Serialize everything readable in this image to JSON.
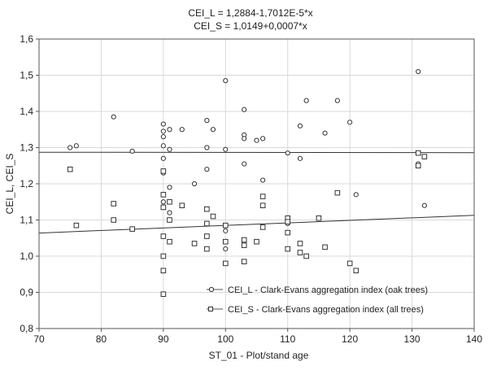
{
  "chart_data": {
    "type": "scatter",
    "title_lines": [
      "CEI_L = 1,2884-1,7012E-5*x",
      "CEI_S = 1,0149+0,0007*x"
    ],
    "xlabel": "ST_01 - Plot/stand age",
    "ylabel": "CEI_L, CEI_S",
    "xlim": [
      70,
      140
    ],
    "ylim": [
      0.8,
      1.6
    ],
    "x_ticks": [
      70,
      80,
      90,
      100,
      110,
      120,
      130,
      140
    ],
    "x_tick_labels": [
      "70",
      "80",
      "90",
      "100",
      "110",
      "120",
      "130",
      "140"
    ],
    "y_ticks": [
      0.8,
      0.9,
      1.0,
      1.1,
      1.2,
      1.3,
      1.4,
      1.5,
      1.6
    ],
    "y_tick_labels": [
      "0,8",
      "0,9",
      "1,0",
      "1,1",
      "1,2",
      "1,3",
      "1,4",
      "1,5",
      "1,6"
    ],
    "grid": true,
    "legend_position": "bottom-right",
    "series": [
      {
        "name": "CEI_L - Clark-Evans aggregation index (oak trees)",
        "marker": "circle",
        "fit": {
          "intercept": 1.2884,
          "slope": -1.7012e-05
        },
        "points": [
          [
            75,
            1.3
          ],
          [
            76,
            1.305
          ],
          [
            82,
            1.385
          ],
          [
            85,
            1.29
          ],
          [
            90,
            1.365
          ],
          [
            90,
            1.345
          ],
          [
            90,
            1.33
          ],
          [
            90,
            1.305
          ],
          [
            90,
            1.27
          ],
          [
            90,
            1.23
          ],
          [
            90,
            1.15
          ],
          [
            91,
            1.35
          ],
          [
            91,
            1.295
          ],
          [
            91,
            1.19
          ],
          [
            91,
            1.12
          ],
          [
            93,
            1.35
          ],
          [
            95,
            1.2
          ],
          [
            97,
            1.375
          ],
          [
            97,
            1.3
          ],
          [
            97,
            1.24
          ],
          [
            98,
            1.35
          ],
          [
            100,
            1.485
          ],
          [
            100,
            1.295
          ],
          [
            100,
            1.07
          ],
          [
            100,
            1.02
          ],
          [
            103,
            1.405
          ],
          [
            103,
            1.335
          ],
          [
            103,
            1.325
          ],
          [
            103,
            1.255
          ],
          [
            105,
            1.32
          ],
          [
            106,
            1.325
          ],
          [
            106,
            1.21
          ],
          [
            110,
            1.285
          ],
          [
            110,
            1.09
          ],
          [
            112,
            1.36
          ],
          [
            112,
            1.27
          ],
          [
            113,
            1.43
          ],
          [
            116,
            1.34
          ],
          [
            118,
            1.43
          ],
          [
            120,
            1.37
          ],
          [
            121,
            1.17
          ],
          [
            131,
            1.51
          ],
          [
            131,
            1.255
          ],
          [
            132,
            1.14
          ]
        ]
      },
      {
        "name": "CEI_S - Clark-Evans aggregation index (all trees)",
        "marker": "square",
        "fit": {
          "intercept": 1.0149,
          "slope": 0.0007
        },
        "points": [
          [
            75,
            1.24
          ],
          [
            76,
            1.085
          ],
          [
            82,
            1.145
          ],
          [
            82,
            1.1
          ],
          [
            85,
            1.075
          ],
          [
            90,
            1.235
          ],
          [
            90,
            1.17
          ],
          [
            90,
            1.135
          ],
          [
            90,
            1.055
          ],
          [
            90,
            1.0
          ],
          [
            90,
            0.96
          ],
          [
            90,
            0.895
          ],
          [
            91,
            1.15
          ],
          [
            91,
            1.1
          ],
          [
            91,
            1.04
          ],
          [
            93,
            1.14
          ],
          [
            95,
            1.035
          ],
          [
            97,
            1.13
          ],
          [
            97,
            1.09
          ],
          [
            97,
            1.055
          ],
          [
            97,
            1.02
          ],
          [
            98,
            1.11
          ],
          [
            100,
            1.085
          ],
          [
            100,
            1.04
          ],
          [
            100,
            0.98
          ],
          [
            103,
            1.045
          ],
          [
            103,
            1.03
          ],
          [
            103,
            0.985
          ],
          [
            105,
            1.04
          ],
          [
            106,
            1.165
          ],
          [
            106,
            1.14
          ],
          [
            106,
            1.08
          ],
          [
            110,
            1.105
          ],
          [
            110,
            1.095
          ],
          [
            110,
            1.065
          ],
          [
            110,
            1.02
          ],
          [
            112,
            1.035
          ],
          [
            112,
            1.01
          ],
          [
            113,
            1.0
          ],
          [
            115,
            1.105
          ],
          [
            116,
            1.025
          ],
          [
            118,
            1.175
          ],
          [
            120,
            0.98
          ],
          [
            121,
            0.96
          ],
          [
            131,
            1.285
          ],
          [
            131,
            1.25
          ],
          [
            132,
            1.275
          ]
        ]
      }
    ]
  }
}
